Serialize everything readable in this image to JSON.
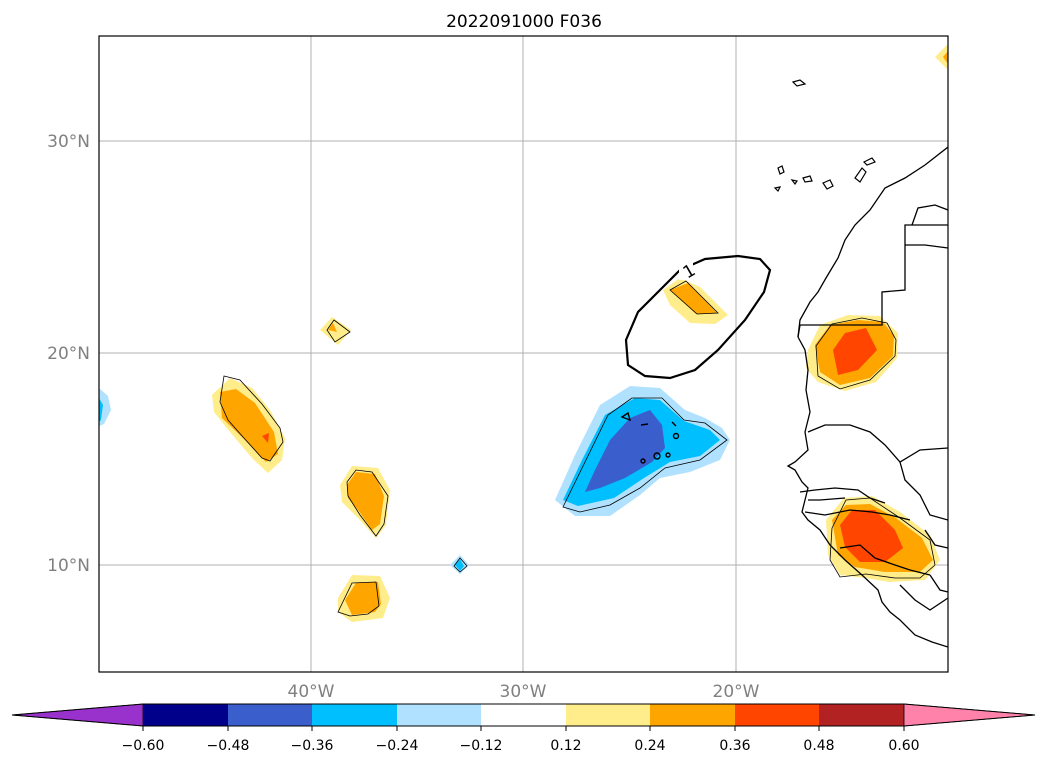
{
  "title": "2022091000 F036",
  "map": {
    "lat_ticks": [
      {
        "value": 30,
        "label": "30°N"
      },
      {
        "value": 20,
        "label": "20°N"
      },
      {
        "value": 10,
        "label": "10°N"
      }
    ],
    "lon_ticks": [
      {
        "value": -40,
        "label": "40°W"
      },
      {
        "value": -30,
        "label": "30°W"
      },
      {
        "value": -20,
        "label": "20°W"
      }
    ],
    "contour_line_label": "1"
  },
  "colorbar": {
    "levels": [
      "−0.60",
      "−0.48",
      "−0.36",
      "−0.24",
      "−0.12",
      "0.12",
      "0.24",
      "0.36",
      "0.48",
      "0.60"
    ],
    "colors": [
      "#9932cc",
      "#00008b",
      "#3a5fcd",
      "#00bfff",
      "#b0e2ff",
      "#ffffff",
      "#ffec8b",
      "#ffa500",
      "#ff4500",
      "#b22222",
      "#ff82ab"
    ]
  }
}
